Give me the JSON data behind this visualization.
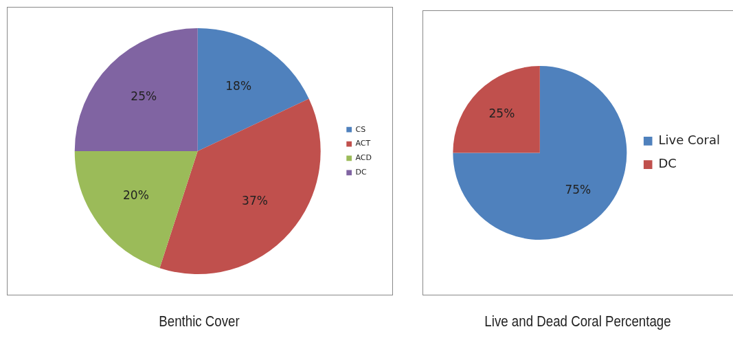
{
  "chart_data": [
    {
      "type": "pie",
      "title": "Benthic Cover",
      "categories": [
        "CS",
        "ACT",
        "ACD",
        "DC"
      ],
      "values": [
        18,
        37,
        20,
        25
      ],
      "colors": [
        "#4f81bd",
        "#c0504d",
        "#9bbb59",
        "#8064a2"
      ],
      "value_labels": [
        "18%",
        "37%",
        "20%",
        "25%"
      ],
      "legend": "right"
    },
    {
      "type": "pie",
      "title": "Live and Dead Coral Percentage",
      "categories": [
        "Live Coral",
        "DC"
      ],
      "values": [
        75,
        25
      ],
      "colors": [
        "#4f81bd",
        "#c0504d"
      ],
      "value_labels": [
        "75%",
        "25%"
      ],
      "legend": "right"
    }
  ]
}
